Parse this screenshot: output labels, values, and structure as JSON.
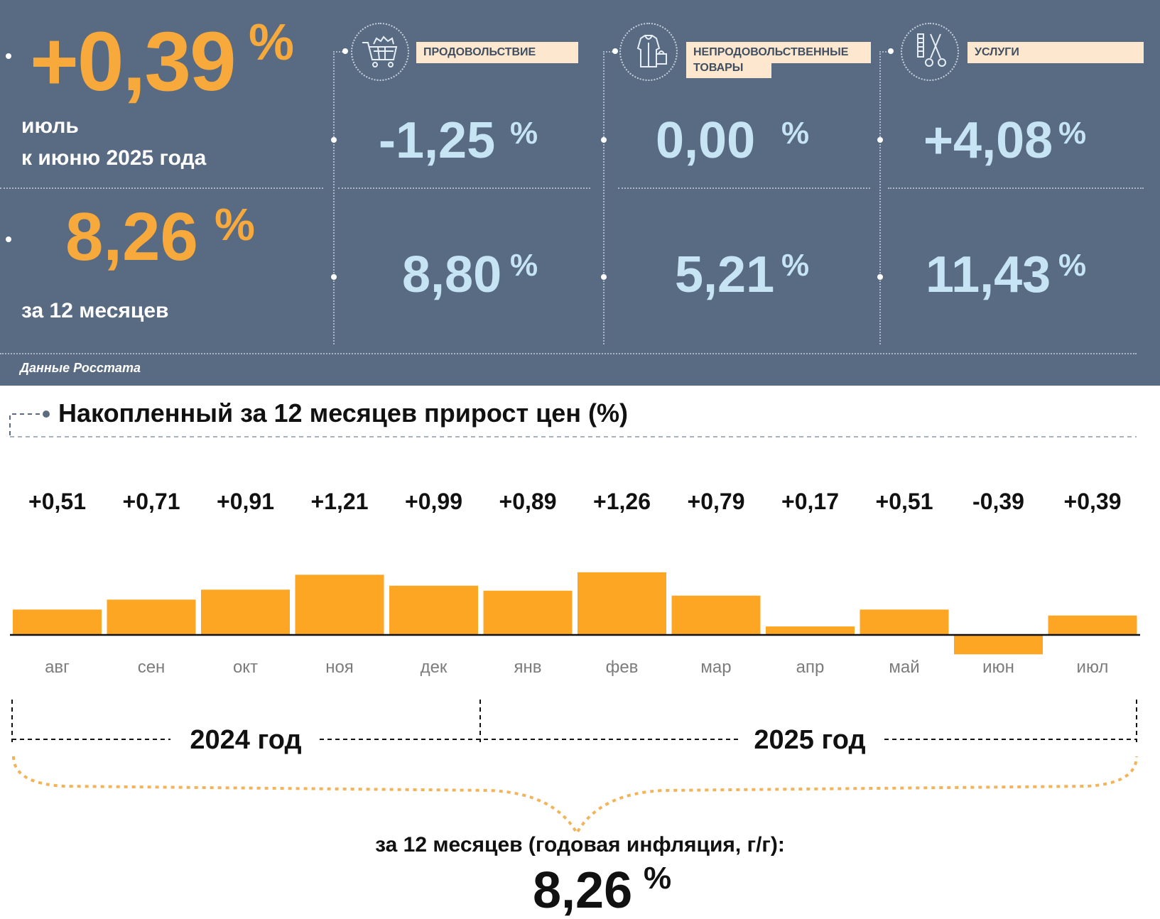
{
  "summary": {
    "monthly_value": "+0,39",
    "pct_sign": "%",
    "monthly_caption_line1": "июль",
    "monthly_caption_line2": "к июню 2025 года",
    "annual_value": "8,26",
    "annual_caption": "за 12 месяцев",
    "source": "Данные Росстата"
  },
  "categories": [
    {
      "label": "ПРОДОВОЛЬСТВИЕ",
      "icon": "shopping-cart-icon",
      "monthly": "-1,25",
      "annual": "8,80"
    },
    {
      "label_line1": "НЕПРОДОВОЛЬСТВЕННЫЕ",
      "label_line2": "ТОВАРЫ",
      "icon": "clothing-icon",
      "monthly": "0,00",
      "annual": "5,21"
    },
    {
      "label": "УСЛУГИ",
      "icon": "scissors-icon",
      "monthly": "+4,08",
      "annual": "11,43"
    }
  ],
  "chart_data": {
    "type": "bar",
    "title": "Накопленный за 12 месяцев прирост цен (%)",
    "categories": [
      "авг",
      "сен",
      "окт",
      "ноя",
      "дек",
      "янв",
      "фев",
      "мар",
      "апр",
      "май",
      "июн",
      "июл"
    ],
    "values": [
      0.51,
      0.71,
      0.91,
      1.21,
      0.99,
      0.89,
      1.26,
      0.79,
      0.17,
      0.51,
      -0.39,
      0.39
    ],
    "value_labels": [
      "+0,51",
      "+0,71",
      "+0,91",
      "+1,21",
      "+0,99",
      "+0,89",
      "+1,26",
      "+0,79",
      "+0,17",
      "+0,51",
      "-0,39",
      "+0,39"
    ],
    "year_labels": [
      "2024 год",
      "2025 год"
    ],
    "bar_color": "#fca624"
  },
  "footer": {
    "caption": "за 12 месяцев (годовая инфляция, г/г):",
    "value": "8,26",
    "pct_sign": "%"
  },
  "colors": {
    "panel": "#586b82",
    "orange": "#f8a93b",
    "light_blue": "#c6e4f3",
    "label_bg": "#fde8cf"
  }
}
